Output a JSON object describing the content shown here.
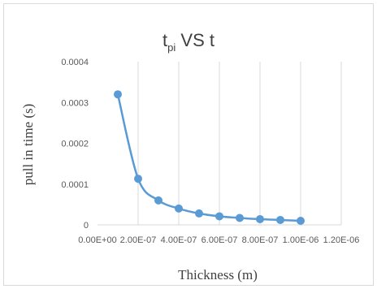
{
  "chart_data": {
    "type": "scatter",
    "title_main": "t",
    "title_sub": "pi",
    "title_rest": " VS t",
    "xlabel": "Thickness (m)",
    "ylabel": "pull in time (s)",
    "xlim": [
      0,
      1.2e-06
    ],
    "ylim": [
      0,
      0.0004
    ],
    "x_ticks": [
      "0.00E+00",
      "2.00E-07",
      "4.00E-07",
      "6.00E-07",
      "8.00E-07",
      "1.00E-06",
      "1.20E-06"
    ],
    "x_tick_values": [
      0,
      2e-07,
      4e-07,
      6e-07,
      8e-07,
      1e-06,
      1.2e-06
    ],
    "y_ticks": [
      "0",
      "0.0001",
      "0.0002",
      "0.0003",
      "0.0004"
    ],
    "y_tick_values": [
      0,
      0.0001,
      0.0002,
      0.0003,
      0.0004
    ],
    "grid": "vertical",
    "legend": "none",
    "series": [
      {
        "color": "#5b9bd5",
        "x": [
          1e-07,
          2e-07,
          3e-07,
          4e-07,
          5e-07,
          6e-07,
          7e-07,
          8e-07,
          9e-07,
          1e-06
        ],
        "y": [
          0.00032,
          0.000113,
          6e-05,
          4e-05,
          2.8e-05,
          2.1e-05,
          1.7e-05,
          1.4e-05,
          1.2e-05,
          1e-05
        ]
      }
    ]
  }
}
